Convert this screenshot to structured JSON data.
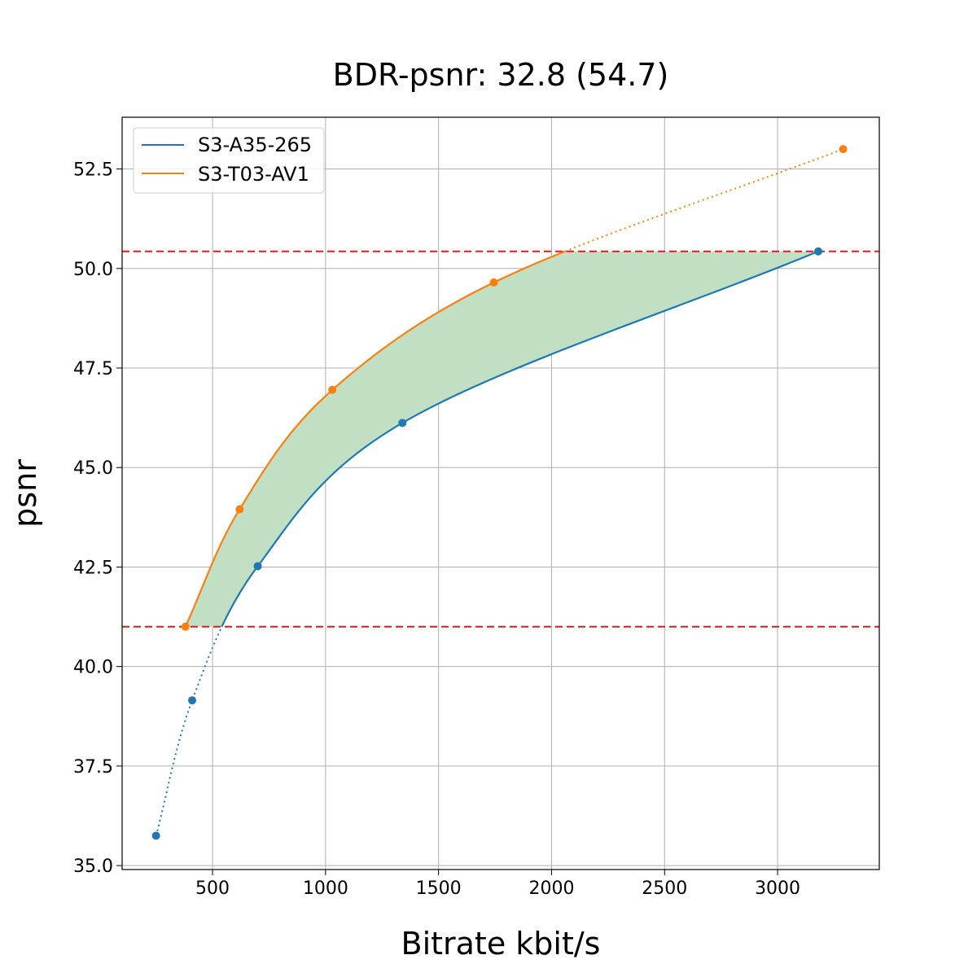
{
  "chart_data": {
    "type": "line",
    "title": "BDR-psnr: 32.8 (54.7)",
    "xlabel": "Bitrate kbit/s",
    "ylabel": "psnr",
    "xlim": [
      100,
      3450
    ],
    "ylim": [
      34.9,
      53.8
    ],
    "xticks": [
      500,
      1000,
      1500,
      2000,
      2500,
      3000
    ],
    "xtick_labels": [
      "500",
      "1000",
      "1500",
      "2000",
      "2500",
      "3000"
    ],
    "yticks": [
      35.0,
      37.5,
      40.0,
      42.5,
      45.0,
      47.5,
      50.0,
      52.5
    ],
    "ytick_labels": [
      "35.0",
      "37.5",
      "40.0",
      "42.5",
      "45.0",
      "47.5",
      "50.0",
      "52.5"
    ],
    "grid": true,
    "legend_position": "top-left",
    "overlap_range": [
      41.0,
      50.43
    ],
    "fill_color": "#c1dfc3",
    "reference_line_color": "#e41a1c",
    "series": [
      {
        "name": "S3-A35-265",
        "color": "#1f77b4",
        "x": [
          250,
          410,
          700,
          1340,
          3180
        ],
        "y": [
          35.75,
          39.15,
          42.52,
          46.12,
          50.43
        ]
      },
      {
        "name": "S3-T03-AV1",
        "color": "#ff7f0e",
        "x": [
          380,
          620,
          1030,
          1745,
          3290
        ],
        "y": [
          41.0,
          43.95,
          46.95,
          49.65,
          53.0
        ]
      }
    ]
  }
}
